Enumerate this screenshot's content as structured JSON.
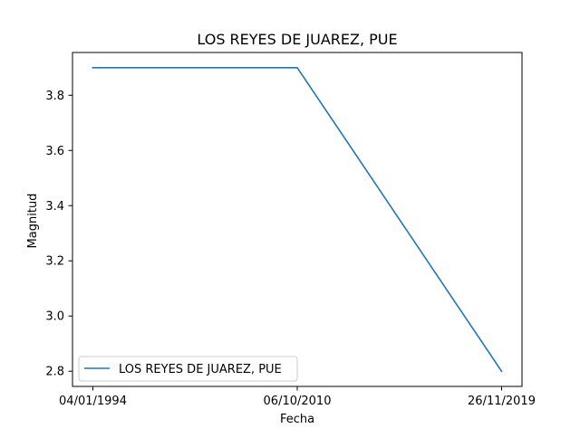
{
  "chart_data": {
    "type": "line",
    "title": "LOS REYES DE JUAREZ, PUE",
    "xlabel": "Fecha",
    "ylabel": "Magnitud",
    "categories": [
      "04/01/1994",
      "06/10/2010",
      "26/11/2019"
    ],
    "series": [
      {
        "name": "LOS REYES DE JUAREZ, PUE",
        "values": [
          3.9,
          3.9,
          2.8
        ],
        "color": "#1f77b4"
      }
    ],
    "yticks": [
      "2.8",
      "3.0",
      "3.2",
      "3.4",
      "3.6",
      "3.8"
    ],
    "ylim": [
      2.745,
      3.955
    ],
    "grid": false,
    "legend_position": "lower-left"
  }
}
